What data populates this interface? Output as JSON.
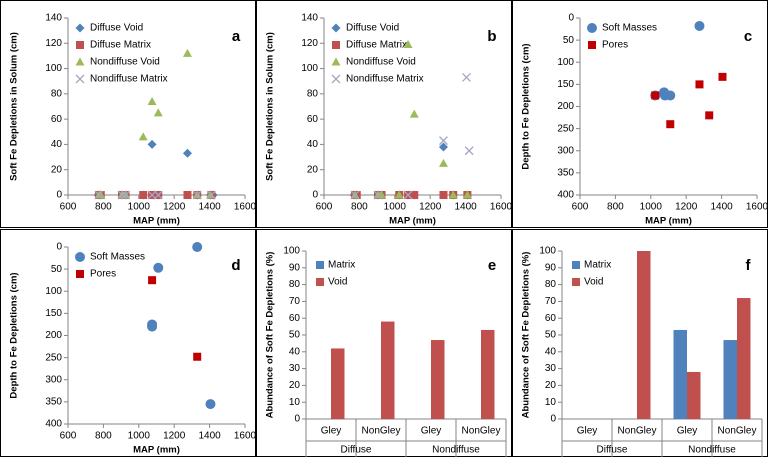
{
  "chart_data": [
    {
      "type": "scatter",
      "panel_label": "a",
      "x_label": "MAP (mm)",
      "y_label": "Soft Fe Depletions in Solum (cm)",
      "xlim": [
        600,
        1600
      ],
      "xticks": [
        600,
        800,
        1000,
        1200,
        1400,
        1600
      ],
      "ylim": [
        0,
        140
      ],
      "yticks": [
        0,
        20,
        40,
        60,
        80,
        100,
        120,
        140
      ],
      "legend": "upper left",
      "series": [
        {
          "name": "Diffuse Void",
          "color": "#4f81bd",
          "marker": "diamond",
          "x": [
            770,
            785,
            905,
            925,
            1025,
            1075,
            1085,
            1110,
            1275,
            1330,
            1405,
            1420
          ],
          "values": [
            0,
            0,
            0,
            0,
            0,
            40,
            0,
            0,
            33,
            0,
            0,
            0
          ]
        },
        {
          "name": "Diffuse Matrix",
          "color": "#c0504d",
          "marker": "square",
          "x": [
            775,
            785,
            905,
            925,
            1025,
            1075,
            1110,
            1275,
            1330,
            1410
          ],
          "values": [
            0,
            0,
            0,
            0,
            0,
            0,
            0,
            0,
            0,
            0
          ]
        },
        {
          "name": "Nondiffuse Void",
          "color": "#9bbb59",
          "marker": "triangle",
          "x": [
            775,
            785,
            905,
            925,
            1025,
            1075,
            1110,
            1275,
            1330,
            1405
          ],
          "values": [
            0,
            0,
            0,
            0,
            46,
            74,
            65,
            112,
            0,
            0
          ]
        },
        {
          "name": "Nondiffuse Matrix",
          "color": "#a6a6c8",
          "marker": "x",
          "x": [
            775,
            905,
            925,
            1075,
            1110,
            1330,
            1410
          ],
          "values": [
            0,
            0,
            0,
            0,
            0,
            0,
            0
          ]
        }
      ]
    },
    {
      "type": "scatter",
      "panel_label": "b",
      "x_label": "MAP (mm)",
      "y_label": "Soft Fe Depletions in Solum (cm)",
      "xlim": [
        600,
        1600
      ],
      "xticks": [
        600,
        800,
        1000,
        1200,
        1400,
        1600
      ],
      "ylim": [
        0,
        140
      ],
      "yticks": [
        0,
        20,
        40,
        60,
        80,
        100,
        120,
        140
      ],
      "legend": "upper left",
      "series": [
        {
          "name": "Diffuse Void",
          "color": "#4f81bd",
          "marker": "diamond",
          "x": [
            770,
            785,
            905,
            925,
            1025,
            1075,
            1110,
            1275,
            1330,
            1410
          ],
          "values": [
            0,
            0,
            0,
            0,
            0,
            0,
            0,
            38,
            0,
            0
          ]
        },
        {
          "name": "Diffuse Matrix",
          "color": "#c0504d",
          "marker": "square",
          "x": [
            775,
            785,
            905,
            925,
            1025,
            1075,
            1110,
            1275,
            1330,
            1410
          ],
          "values": [
            0,
            0,
            0,
            0,
            0,
            0,
            0,
            0,
            0,
            0
          ]
        },
        {
          "name": "Nondiffuse Void",
          "color": "#9bbb59",
          "marker": "triangle",
          "x": [
            775,
            905,
            925,
            1025,
            1075,
            1110,
            1275,
            1330,
            1410
          ],
          "values": [
            0,
            0,
            0,
            0,
            119,
            64,
            25,
            0,
            0
          ]
        },
        {
          "name": "Nondiffuse Matrix",
          "color": "#a6a6c8",
          "marker": "x",
          "x": [
            775,
            905,
            1075,
            1275,
            1405,
            1420
          ],
          "values": [
            0,
            0,
            0,
            43,
            93,
            35
          ]
        }
      ]
    },
    {
      "type": "scatter",
      "panel_label": "c",
      "x_label": "MAP (mm)",
      "y_label": "Depth to Fe Depletions (cm)",
      "xlim": [
        600,
        1600
      ],
      "xticks": [
        600,
        800,
        1000,
        1200,
        1400,
        1600
      ],
      "ylim": [
        400,
        0
      ],
      "yticks": [
        0,
        50,
        100,
        150,
        200,
        250,
        300,
        350,
        400
      ],
      "legend": "upper left",
      "series": [
        {
          "name": "Soft Masses",
          "color": "#4f81bd",
          "marker": "circle",
          "x": [
            1025,
            1075,
            1080,
            1110,
            1275
          ],
          "values": [
            175,
            168,
            175,
            175,
            18
          ]
        },
        {
          "name": "Pores",
          "color": "#c00000",
          "marker": "square",
          "x": [
            1025,
            1110,
            1275,
            1330,
            1405
          ],
          "values": [
            175,
            240,
            150,
            220,
            133
          ]
        }
      ]
    },
    {
      "type": "scatter",
      "panel_label": "d",
      "x_label": "MAP (mm)",
      "y_label": "Depth to Fe Depletions (cm)",
      "xlim": [
        600,
        1600
      ],
      "xticks": [
        600,
        800,
        1000,
        1200,
        1400,
        1600
      ],
      "ylim": [
        400,
        0
      ],
      "yticks": [
        0,
        50,
        100,
        150,
        200,
        250,
        300,
        350,
        400
      ],
      "legend": "upper left",
      "series": [
        {
          "name": "Soft Masses",
          "color": "#4f81bd",
          "marker": "circle",
          "x": [
            1075,
            1075,
            1110,
            1330,
            1405
          ],
          "values": [
            175,
            180,
            47,
            0,
            355
          ]
        },
        {
          "name": "Pores",
          "color": "#c00000",
          "marker": "square",
          "x": [
            1075,
            1330
          ],
          "values": [
            75,
            248
          ]
        }
      ]
    },
    {
      "type": "bar",
      "panel_label": "e",
      "y_label": "Abundance of Soft Fe Depletions (%)",
      "categories": [
        "Gley",
        "NonGley",
        "Gley",
        "NonGley"
      ],
      "group_labels": [
        "Diffuse",
        "Nondiffuse"
      ],
      "ylim": [
        0,
        100
      ],
      "yticks": [
        0,
        10,
        20,
        30,
        40,
        50,
        60,
        70,
        80,
        90,
        100
      ],
      "legend": "upper left",
      "series": [
        {
          "name": "Matrix",
          "color": "#4f81bd",
          "values": [
            0,
            0,
            0,
            0
          ]
        },
        {
          "name": "Void",
          "color": "#c0504d",
          "values": [
            42,
            58,
            47,
            53
          ]
        }
      ]
    },
    {
      "type": "bar",
      "panel_label": "f",
      "y_label": "Abundance of Soft Fe Depletions (%)",
      "categories": [
        "Gley",
        "NonGley",
        "Gley",
        "NonGley"
      ],
      "group_labels": [
        "Diffuse",
        "Nondiffuse"
      ],
      "ylim": [
        0,
        100
      ],
      "yticks": [
        0,
        10,
        20,
        30,
        40,
        50,
        60,
        70,
        80,
        90,
        100
      ],
      "legend": "upper left",
      "series": [
        {
          "name": "Matrix",
          "color": "#4f81bd",
          "values": [
            0,
            0,
            53,
            47
          ]
        },
        {
          "name": "Void",
          "color": "#c0504d",
          "values": [
            0,
            100,
            28,
            72
          ]
        }
      ]
    }
  ]
}
